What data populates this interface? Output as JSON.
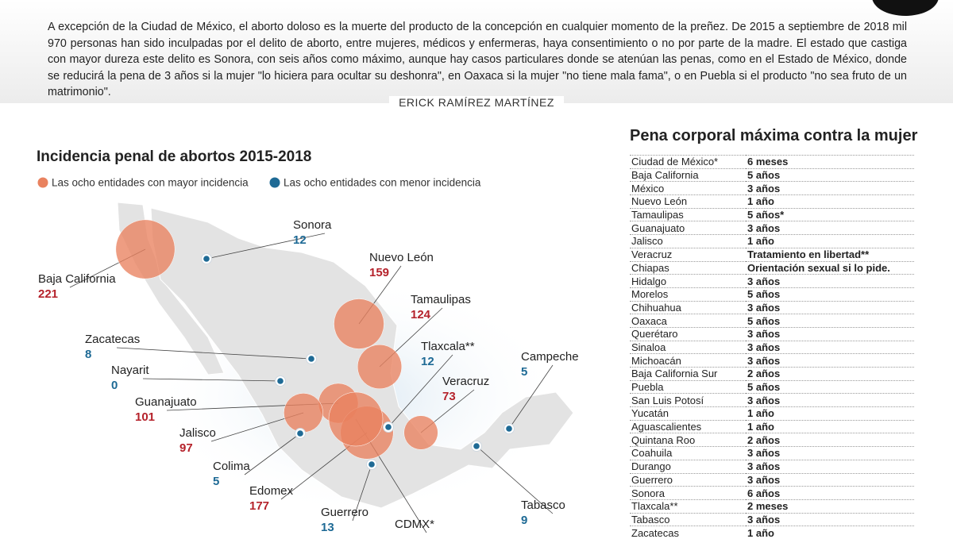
{
  "header": {
    "intro": "A excepción de la Ciudad de México, el aborto doloso es la muerte del producto de la concepción en cualquier momento de la preñez. De 2015 a septiembre de 2018 mil 970 personas han sido inculpadas por el delito de aborto, entre mujeres, médicos y enfermeras, haya consentimiento o no por parte de la madre. El estado que castiga con mayor dureza este delito es Sonora, con seis años como máximo, aunque hay casos particulares donde se atenúan las penas, como en el Estado de México, donde se reducirá la pena de 3 años si la mujer \"lo hiciera para ocultar su deshonra\", en Oaxaca si la mujer \"no tiene mala fama\", o en Puebla si el producto \"no sea fruto de un matrimonio\".",
    "author": "ERICK RAMÍREZ MARTÍNEZ"
  },
  "map": {
    "title": "Incidencia penal de abortos 2015-2018",
    "groups": [
      {
        "label": "Las ocho entidades con mayor incidencia",
        "color": "#e9825f",
        "text_color": "#b5222b",
        "entities": [
          {
            "name": "Baja California",
            "value": 221
          },
          {
            "name": "Nuevo León",
            "value": 159
          },
          {
            "name": "Tamaulipas",
            "value": 124
          },
          {
            "name": "Veracruz",
            "value": 73
          },
          {
            "name": "Guanajuato",
            "value": 101
          },
          {
            "name": "Jalisco",
            "value": 97
          },
          {
            "name": "Edomex",
            "value": 177
          },
          {
            "name": "CDMX*"
          }
        ]
      },
      {
        "label": "Las ocho entidades con menor incidencia",
        "color": "#1e6a95",
        "text_color": "#1e6a95",
        "entities": [
          {
            "name": "Sonora",
            "value": 12
          },
          {
            "name": "Zacatecas",
            "value": 8
          },
          {
            "name": "Tlaxcala**",
            "value": 12
          },
          {
            "name": "Campeche",
            "value": 5
          },
          {
            "name": "Nayarit",
            "value": 0
          },
          {
            "name": "Colima",
            "value": 5
          },
          {
            "name": "Guerrero",
            "value": 13
          },
          {
            "name": "Tabasco",
            "value": 9
          }
        ]
      }
    ]
  },
  "table": {
    "title": "Pena corporal máxima contra la mujer",
    "rows": [
      [
        "Ciudad de México*",
        "6 meses"
      ],
      [
        "Baja California",
        "5 años"
      ],
      [
        "México",
        "3 años"
      ],
      [
        "Nuevo León",
        "1 año"
      ],
      [
        "Tamaulipas",
        "5 años*"
      ],
      [
        "Guanajuato",
        "3 años"
      ],
      [
        "Jalisco",
        "1 año"
      ],
      [
        "Veracruz",
        "Tratamiento en libertad**"
      ],
      [
        "Chiapas",
        "Orientación sexual si lo pide."
      ],
      [
        "Hidalgo",
        "3 años"
      ],
      [
        "Morelos",
        "5 años"
      ],
      [
        "Chihuahua",
        "3 años"
      ],
      [
        "Oaxaca",
        "5 años"
      ],
      [
        "Querétaro",
        "3 años"
      ],
      [
        "Sinaloa",
        "3 años"
      ],
      [
        "Michoacán",
        "3 años"
      ],
      [
        "Baja California Sur",
        "2 años"
      ],
      [
        "Puebla",
        "5 años"
      ],
      [
        "San Luis Potosí",
        "3 años"
      ],
      [
        "Yucatán",
        "1 año"
      ],
      [
        "Aguascalientes",
        "1 año"
      ],
      [
        "Quintana Roo",
        "2 años"
      ],
      [
        "Coahuila",
        "3 años"
      ],
      [
        "Durango",
        "3 años"
      ],
      [
        "Guerrero",
        "3 años"
      ],
      [
        "Sonora",
        "6 años"
      ],
      [
        "Tlaxcala**",
        "2 meses"
      ],
      [
        "Tabasco",
        "3 años"
      ],
      [
        "Zacatecas",
        "1 año"
      ]
    ]
  }
}
